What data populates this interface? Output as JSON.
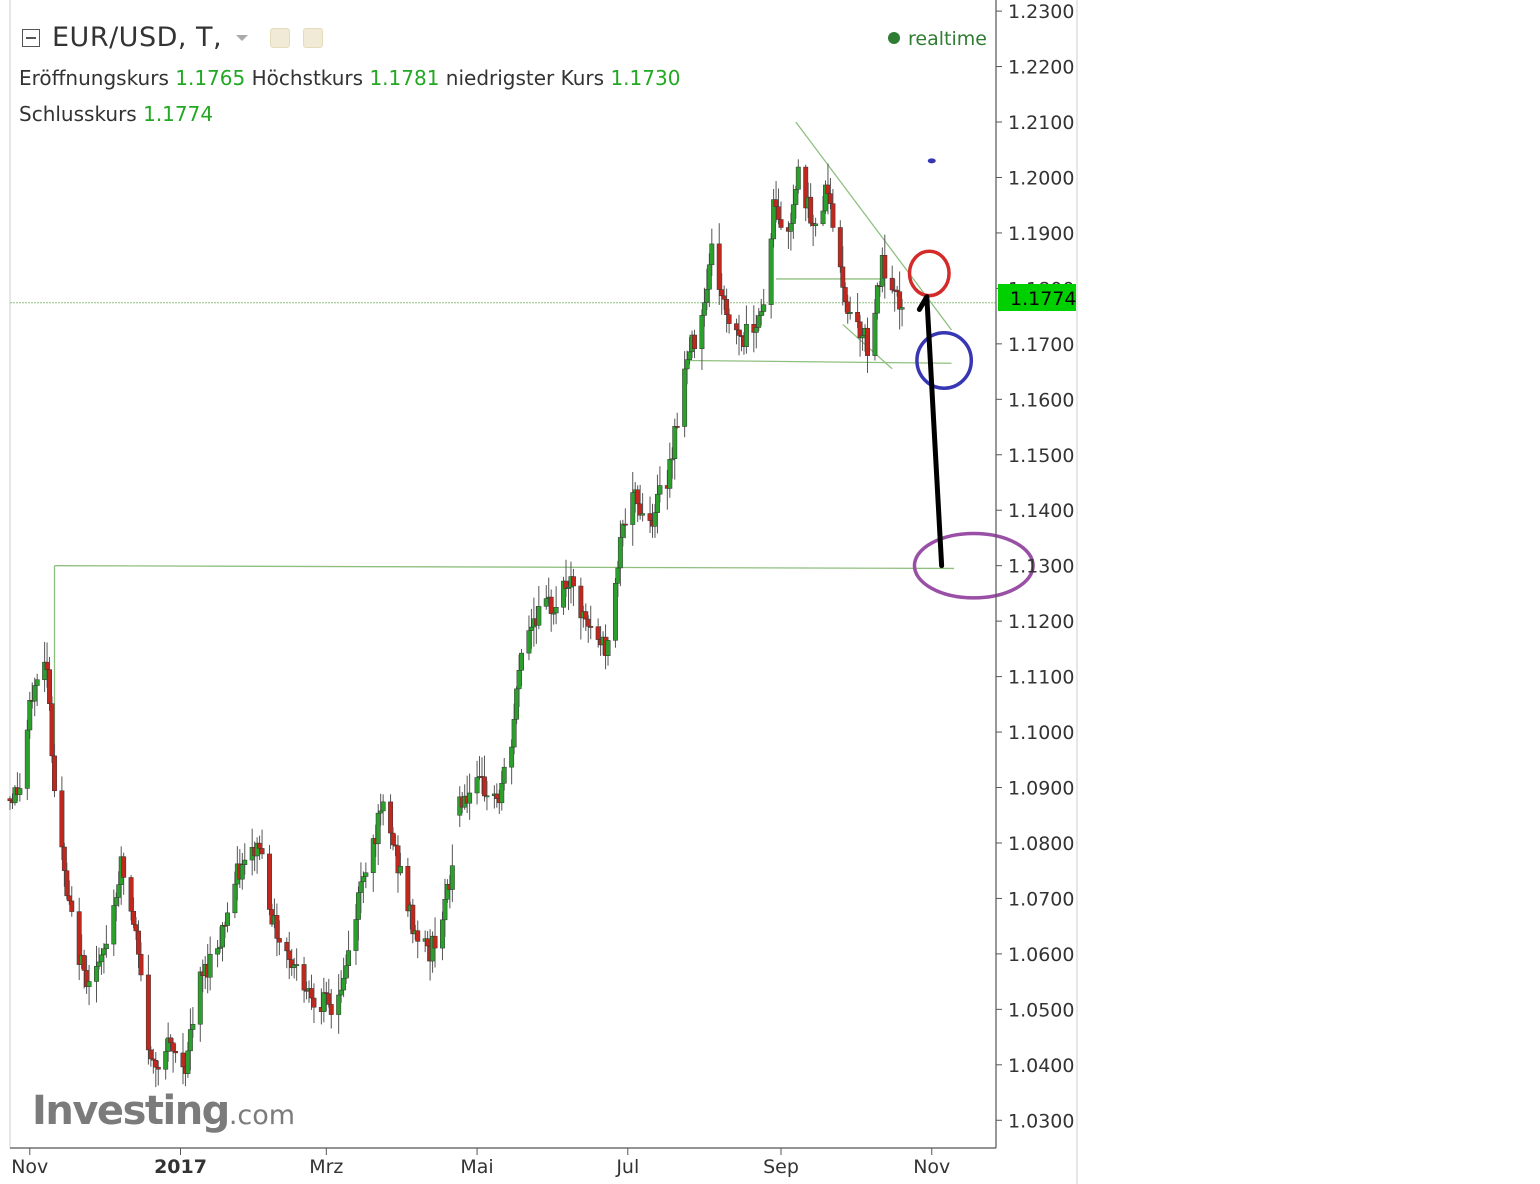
{
  "header": {
    "symbol": "EUR/USD, T,",
    "open_label": "Eröffnungskurs",
    "open_value": "1.1765",
    "high_label": "Höchstkurs",
    "high_value": "1.1781",
    "low_label": "niedrigster Kurs",
    "low_value": "1.1730",
    "close_label": "Schlusskurs",
    "close_value": "1.1774",
    "realtime_label": "realtime"
  },
  "watermark": {
    "brand": "Investing",
    "suffix": ".com"
  },
  "colors": {
    "up_candle": "#2ca02c",
    "down_candle": "#c0281e",
    "price_tag": "#00d000",
    "trendline": "#8fbf7f",
    "annotation_red": "#d42a2a",
    "annotation_blue": "#3737b3",
    "annotation_purple": "#9a4fa6",
    "annotation_arrow": "#000000"
  },
  "chart_data": {
    "type": "candlestick",
    "y_axis": {
      "min": 1.025,
      "max": 1.232,
      "ticks": [
        "1.2300",
        "1.2200",
        "1.2100",
        "1.2000",
        "1.1900",
        "1.1800",
        "1.1700",
        "1.1600",
        "1.1500",
        "1.1400",
        "1.1300",
        "1.1200",
        "1.1100",
        "1.1000",
        "1.0900",
        "1.0800",
        "1.0700",
        "1.0600",
        "1.0500",
        "1.0400",
        "1.0300"
      ]
    },
    "x_axis": {
      "start": "2016-10-24",
      "end": "2017-11-27",
      "ticks": [
        {
          "date": "2016-11-01",
          "label": "Nov",
          "bold": false
        },
        {
          "date": "2017-01-01",
          "label": "2017",
          "bold": true
        },
        {
          "date": "2017-03-01",
          "label": "Mrz",
          "bold": false
        },
        {
          "date": "2017-05-01",
          "label": "Mai",
          "bold": false
        },
        {
          "date": "2017-07-01",
          "label": "Jul",
          "bold": false
        },
        {
          "date": "2017-09-01",
          "label": "Sep",
          "bold": false
        },
        {
          "date": "2017-11-01",
          "label": "Nov",
          "bold": false
        }
      ]
    },
    "last_price": "1.1774",
    "price_path": [
      [
        "2016-10-24",
        1.088
      ],
      [
        "2016-10-28",
        1.09
      ],
      [
        "2016-11-02",
        1.107
      ],
      [
        "2016-11-08",
        1.113
      ],
      [
        "2016-11-11",
        1.09
      ],
      [
        "2016-11-16",
        1.07
      ],
      [
        "2016-11-23",
        1.056
      ],
      [
        "2016-11-30",
        1.058
      ],
      [
        "2016-12-08",
        1.076
      ],
      [
        "2016-12-14",
        1.063
      ],
      [
        "2016-12-20",
        1.04
      ],
      [
        "2016-12-27",
        1.043
      ],
      [
        "2017-01-03",
        1.04
      ],
      [
        "2017-01-09",
        1.055
      ],
      [
        "2017-01-17",
        1.063
      ],
      [
        "2017-01-24",
        1.074
      ],
      [
        "2017-02-02",
        1.08
      ],
      [
        "2017-02-08",
        1.065
      ],
      [
        "2017-02-16",
        1.058
      ],
      [
        "2017-02-23",
        1.053
      ],
      [
        "2017-03-03",
        1.05
      ],
      [
        "2017-03-08",
        1.055
      ],
      [
        "2017-03-16",
        1.075
      ],
      [
        "2017-03-24",
        1.086
      ],
      [
        "2017-03-28",
        1.08
      ],
      [
        "2017-04-05",
        1.065
      ],
      [
        "2017-04-12",
        1.06
      ],
      [
        "2017-04-20",
        1.072
      ],
      [
        "2017-04-24",
        1.088
      ],
      [
        "2017-05-03",
        1.09
      ],
      [
        "2017-05-10",
        1.088
      ],
      [
        "2017-05-15",
        1.098
      ],
      [
        "2017-05-19",
        1.115
      ],
      [
        "2017-05-24",
        1.121
      ],
      [
        "2017-06-01",
        1.123
      ],
      [
        "2017-06-07",
        1.127
      ],
      [
        "2017-06-14",
        1.119
      ],
      [
        "2017-06-23",
        1.115
      ],
      [
        "2017-06-28",
        1.136
      ],
      [
        "2017-07-04",
        1.142
      ],
      [
        "2017-07-10",
        1.138
      ],
      [
        "2017-07-17",
        1.146
      ],
      [
        "2017-07-24",
        1.165
      ],
      [
        "2017-07-31",
        1.176
      ],
      [
        "2017-08-04",
        1.187
      ],
      [
        "2017-08-10",
        1.175
      ],
      [
        "2017-08-17",
        1.171
      ],
      [
        "2017-08-25",
        1.177
      ],
      [
        "2017-08-29",
        1.195
      ],
      [
        "2017-09-04",
        1.189
      ],
      [
        "2017-09-08",
        1.203
      ],
      [
        "2017-09-14",
        1.19
      ],
      [
        "2017-09-20",
        1.199
      ],
      [
        "2017-09-26",
        1.179
      ],
      [
        "2017-10-03",
        1.173
      ],
      [
        "2017-10-06",
        1.17
      ],
      [
        "2017-10-12",
        1.184
      ],
      [
        "2017-10-16",
        1.178
      ],
      [
        "2017-10-20",
        1.177
      ]
    ],
    "gap_ranges": [
      [
        "2017-04-24",
        "2017-04-24"
      ]
    ],
    "trendlines": [
      {
        "from": [
          "2017-09-07",
          1.21
        ],
        "to": [
          "2017-11-09",
          1.1725
        ]
      },
      {
        "from": [
          "2017-08-30",
          1.1817
        ],
        "to": [
          "2017-10-13",
          1.1817
        ]
      },
      {
        "from": [
          "2017-07-25",
          1.167
        ],
        "to": [
          "2017-11-09",
          1.1665
        ]
      },
      {
        "from": [
          "2017-09-26",
          1.1735
        ],
        "to": [
          "2017-10-16",
          1.1655
        ]
      },
      {
        "from": [
          "2016-11-11",
          1.13
        ],
        "to": [
          "2017-11-10",
          1.1295
        ]
      },
      {
        "from": [
          "2016-11-11",
          1.089
        ],
        "to": [
          "2016-11-11",
          1.13
        ]
      }
    ],
    "annotations": [
      {
        "shape": "ellipse",
        "color": "annotation_red",
        "center": [
          "2017-10-31",
          1.1827
        ],
        "rx_days": 8,
        "ry": 0.004
      },
      {
        "shape": "ellipse",
        "color": "annotation_blue",
        "center": [
          "2017-11-06",
          1.167
        ],
        "rx_days": 11,
        "ry": 0.005
      },
      {
        "shape": "ellipse",
        "color": "annotation_purple",
        "center": [
          "2017-11-18",
          1.13
        ],
        "rx_days": 24,
        "ry": 0.0058
      },
      {
        "shape": "dot",
        "color": "annotation_blue",
        "center": [
          "2017-11-01",
          1.203
        ]
      },
      {
        "shape": "arrow",
        "color": "annotation_arrow",
        "points": [
          [
            "2017-11-05",
            1.13
          ],
          [
            "2017-10-30",
            1.1785
          ],
          [
            "2017-10-27",
            1.1762
          ]
        ]
      }
    ]
  }
}
